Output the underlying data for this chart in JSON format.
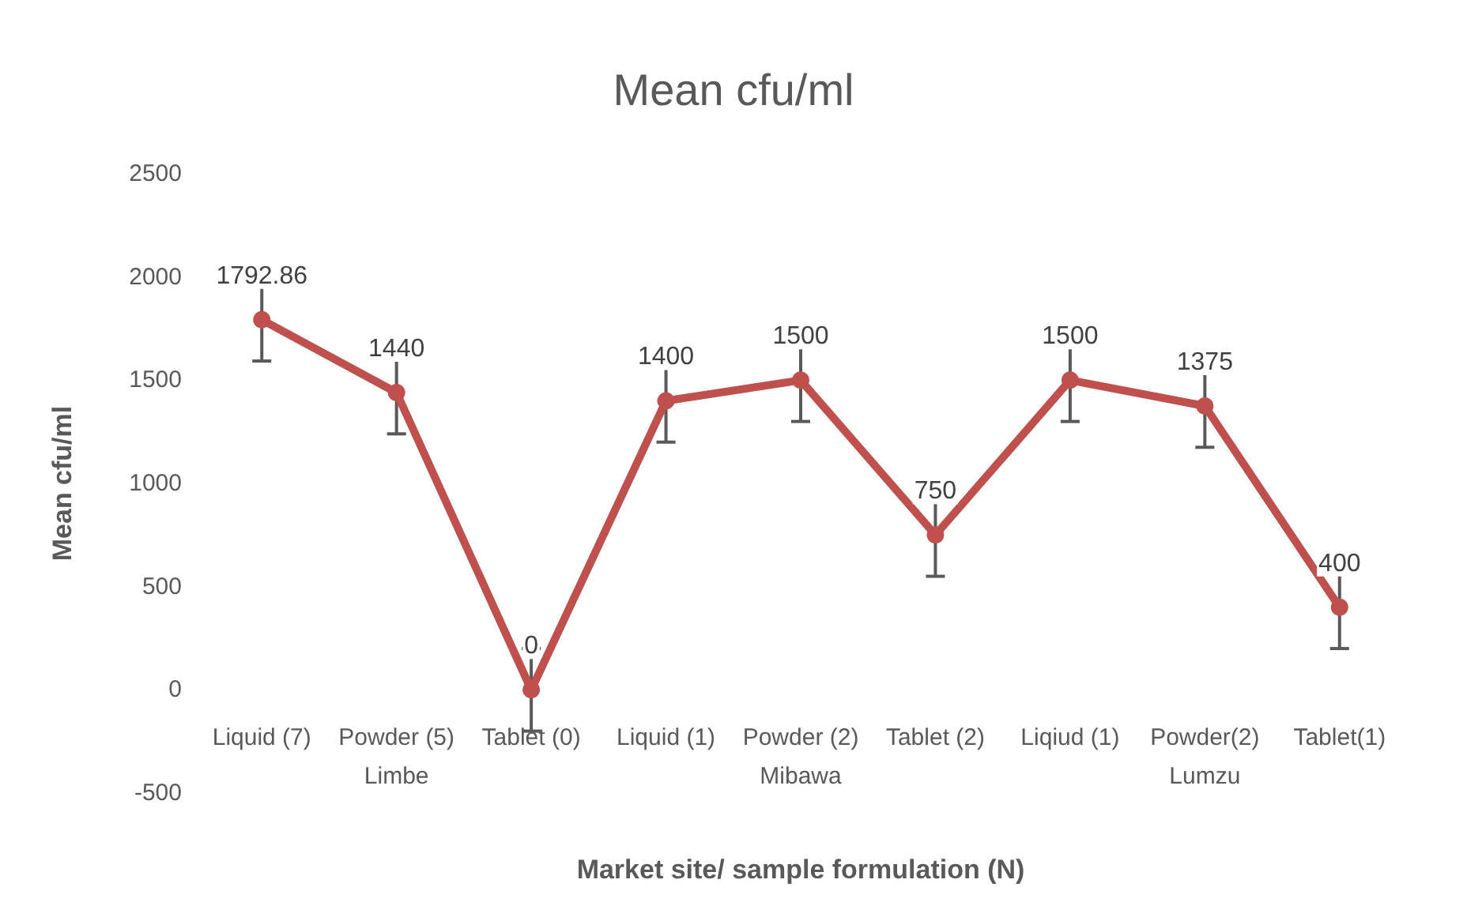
{
  "chart_data": {
    "type": "line",
    "title": "Mean cfu/ml",
    "xlabel": "Market site/ sample formulation (N)",
    "ylabel": "Mean cfu/ml",
    "categories": [
      "Liquid (7)",
      "Powder (5)",
      "Tablet (0)",
      "Liquid (1)",
      "Powder (2)",
      "Tablet (2)",
      "Liqiud (1)",
      "Powder(2)",
      "Tablet(1)"
    ],
    "series": [
      {
        "color": "#c0504d",
        "values": [
          1792.86,
          1440,
          0,
          1400,
          1500,
          750,
          1500,
          1375,
          400
        ],
        "errors": [
          200,
          200,
          200,
          200,
          200,
          200,
          200,
          200,
          200
        ]
      }
    ],
    "ylim": [
      -500,
      2500
    ],
    "yticks": [
      -500,
      0,
      500,
      1000,
      1500,
      2000,
      2500
    ],
    "grid": false,
    "marker": "circle",
    "line_style": "solid",
    "data_labels": true,
    "annotations": [
      "Limbe",
      "Mibawa",
      "Lumzu"
    ]
  }
}
